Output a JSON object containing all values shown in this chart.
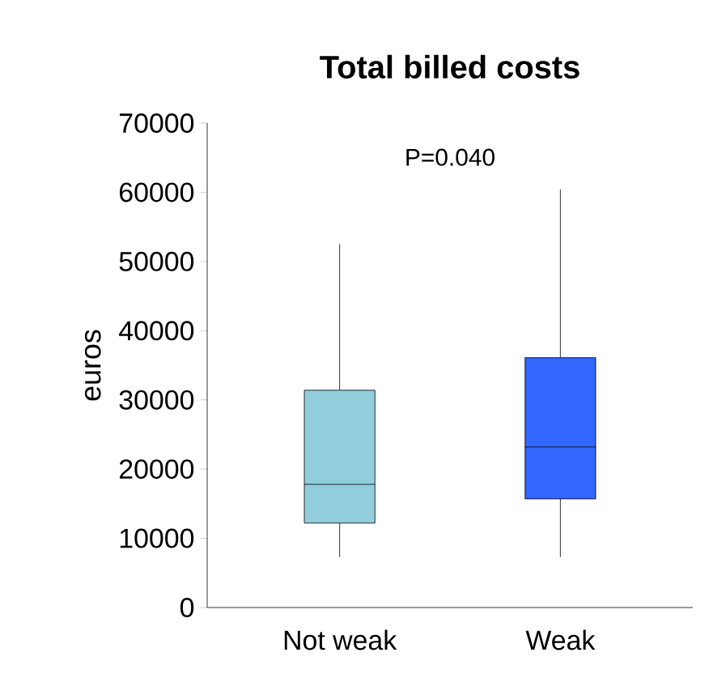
{
  "chart_data": {
    "type": "box",
    "title": "Total billed costs",
    "ylabel": "euros",
    "categories": [
      "Not weak",
      "Weak"
    ],
    "colors": [
      "#92cddc",
      "#3366ff"
    ],
    "boxes": [
      {
        "low": 7300,
        "q1": 12200,
        "median": 17800,
        "q3": 31400,
        "high": 52500
      },
      {
        "low": 7300,
        "q1": 15700,
        "median": 23200,
        "q3": 36100,
        "high": 60400
      }
    ],
    "ylim": [
      0,
      70000
    ],
    "yticks": [
      0,
      10000,
      20000,
      30000,
      40000,
      50000,
      60000,
      70000
    ],
    "grid": false,
    "annotations": [
      "P=0.040"
    ]
  }
}
